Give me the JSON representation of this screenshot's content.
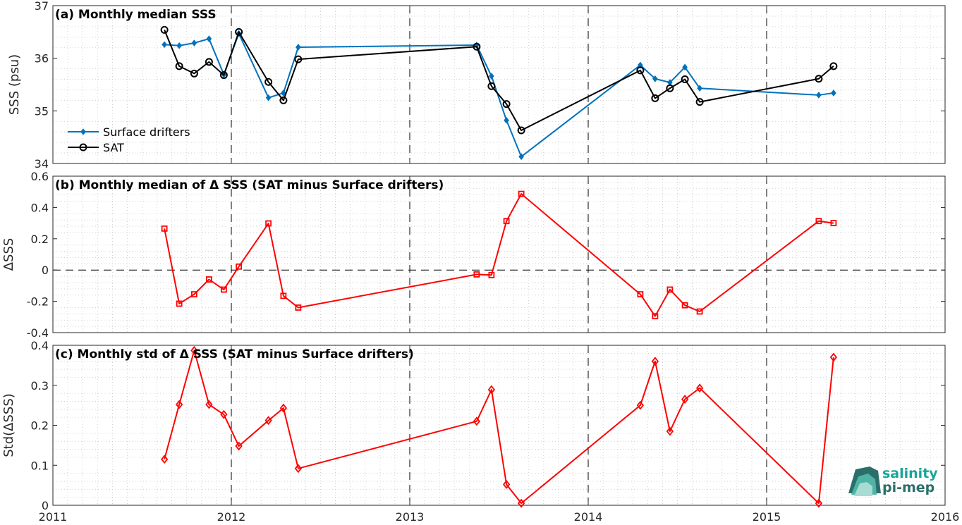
{
  "colors": {
    "surface_drifters": "#0072BD",
    "sat": "#000000",
    "delta": "#FF0000",
    "grid": "#c8c8c8",
    "logo_teal": "#1aa597",
    "logo_dark": "#2b6f6a"
  },
  "logo": {
    "line1": "salinity",
    "line2": "pi-mep"
  },
  "chart_data": [
    {
      "type": "line",
      "title": "(a) Monthly median SSS",
      "xlabel": "",
      "ylabel": "SSS (psu)",
      "xlim": [
        2011,
        2016
      ],
      "ylim": [
        34,
        37
      ],
      "yticks": [
        34,
        35,
        36,
        37
      ],
      "ytick_labels": [
        "34",
        "35",
        "36",
        "37"
      ],
      "grid": "dotted minor grid",
      "legend_position": "lower-left",
      "series": [
        {
          "name": "Surface drifters",
          "marker": "diamond-filled",
          "x": [
            2011.625,
            2011.708,
            2011.792,
            2011.875,
            2011.958,
            2012.042,
            2012.208,
            2012.292,
            2012.375,
            2013.375,
            2013.458,
            2013.542,
            2013.625,
            2014.292,
            2014.375,
            2014.458,
            2014.542,
            2014.625,
            2015.292,
            2015.375
          ],
          "values": [
            36.26,
            36.24,
            36.29,
            36.37,
            35.69,
            36.47,
            35.25,
            35.34,
            36.21,
            36.25,
            35.66,
            34.82,
            34.13,
            35.87,
            35.61,
            35.54,
            35.83,
            35.43,
            35.3,
            35.34
          ]
        },
        {
          "name": "SAT",
          "marker": "circle-open",
          "x": [
            2011.625,
            2011.708,
            2011.792,
            2011.875,
            2011.958,
            2012.042,
            2012.208,
            2012.292,
            2012.375,
            2013.375,
            2013.458,
            2013.542,
            2013.625,
            2014.292,
            2014.375,
            2014.458,
            2014.542,
            2014.625,
            2015.292,
            2015.375
          ],
          "values": [
            36.54,
            35.85,
            35.71,
            35.93,
            35.68,
            36.5,
            35.55,
            35.2,
            35.98,
            36.22,
            35.47,
            35.13,
            34.63,
            35.77,
            35.24,
            35.43,
            35.6,
            35.17,
            35.61,
            35.85
          ]
        }
      ]
    },
    {
      "type": "line",
      "title": "(b) Monthly median of Δ SSS (SAT minus Surface drifters)",
      "xlabel": "",
      "ylabel": "ΔSSS",
      "xlim": [
        2011,
        2016
      ],
      "ylim": [
        -0.4,
        0.6
      ],
      "yticks": [
        -0.4,
        -0.2,
        0,
        0.2,
        0.4,
        0.6
      ],
      "ytick_labels": [
        "-0.4",
        "-0.2",
        "0",
        "0.2",
        "0.4",
        "0.6"
      ],
      "reference_line": 0,
      "series": [
        {
          "marker": "square-open",
          "x": [
            2011.625,
            2011.708,
            2011.792,
            2011.875,
            2011.958,
            2012.042,
            2012.208,
            2012.292,
            2012.375,
            2013.375,
            2013.458,
            2013.542,
            2013.625,
            2014.292,
            2014.375,
            2014.458,
            2014.542,
            2014.625,
            2015.292,
            2015.375
          ],
          "values": [
            0.265,
            -0.215,
            -0.155,
            -0.06,
            -0.125,
            0.022,
            0.298,
            -0.165,
            -0.24,
            -0.028,
            -0.032,
            0.313,
            0.487,
            -0.155,
            -0.295,
            -0.125,
            -0.225,
            -0.265,
            0.313,
            0.3
          ]
        }
      ]
    },
    {
      "type": "line",
      "title": "(c) Monthly std of Δ SSS (SAT minus Surface drifters)",
      "xlabel": "",
      "ylabel": "Std(ΔSSS)",
      "xlim": [
        2011,
        2016
      ],
      "ylim": [
        0,
        0.4
      ],
      "xticks": [
        2011,
        2012,
        2013,
        2014,
        2015,
        2016
      ],
      "xtick_labels": [
        "2011",
        "2012",
        "2013",
        "2014",
        "2015",
        "2016"
      ],
      "yticks": [
        0,
        0.1,
        0.2,
        0.3,
        0.4
      ],
      "ytick_labels": [
        "0",
        "0.1",
        "0.2",
        "0.3",
        "0.4"
      ],
      "series": [
        {
          "marker": "diamond-open",
          "x": [
            2011.625,
            2011.708,
            2011.792,
            2011.875,
            2011.958,
            2012.042,
            2012.208,
            2012.292,
            2012.375,
            2013.375,
            2013.458,
            2013.542,
            2013.625,
            2014.292,
            2014.375,
            2014.458,
            2014.542,
            2014.625,
            2015.292,
            2015.375
          ],
          "values": [
            0.115,
            0.252,
            0.387,
            0.252,
            0.227,
            0.148,
            0.212,
            0.243,
            0.092,
            0.21,
            0.289,
            0.052,
            0.005,
            0.25,
            0.36,
            0.185,
            0.265,
            0.293,
            0.005,
            0.37
          ]
        }
      ]
    }
  ]
}
